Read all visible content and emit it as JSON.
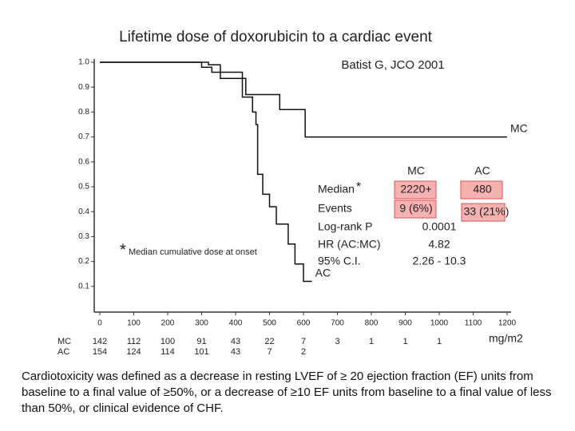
{
  "chart_data": {
    "type": "line",
    "title": "Lifetime dose of doxorubicin to a cardiac event",
    "subtitle": "Batist G, JCO 2001",
    "x_label": "mg/m2",
    "xlim": [
      0,
      1200
    ],
    "xticks": [
      0,
      100,
      200,
      300,
      400,
      500,
      600,
      700,
      800,
      900,
      1000,
      1100,
      1200
    ],
    "ylim": [
      0,
      1
    ],
    "yticks": [
      0.1,
      0.2,
      0.3,
      0.4,
      0.5,
      0.6,
      0.7,
      0.8,
      0.9,
      {
        "value": 1,
        "label": "1.0"
      }
    ],
    "grid": false,
    "series": [
      {
        "name": "MC",
        "color": "#111111",
        "x": [
          0,
          320,
          320,
          355,
          355,
          430,
          430,
          530,
          530,
          605,
          605,
          1200
        ],
        "values": [
          1,
          1,
          0.99,
          0.99,
          0.935,
          0.935,
          0.87,
          0.87,
          0.81,
          0.81,
          0.7,
          0.7
        ]
      },
      {
        "name": "AC",
        "color": "#111111",
        "x": [
          0,
          300,
          300,
          330,
          330,
          420,
          420,
          450,
          450,
          460,
          460,
          465,
          465,
          480,
          480,
          500,
          500,
          520,
          520,
          555,
          555,
          575,
          575,
          600,
          600,
          625
        ],
        "values": [
          1,
          1,
          0.98,
          0.98,
          0.96,
          0.96,
          0.86,
          0.86,
          0.8,
          0.8,
          0.75,
          0.75,
          0.55,
          0.55,
          0.47,
          0.47,
          0.42,
          0.42,
          0.35,
          0.35,
          0.27,
          0.27,
          0.19,
          0.19,
          0.12,
          0.12
        ]
      }
    ],
    "at_risk": [
      {
        "name": "MC",
        "counts": [
          142,
          112,
          100,
          91,
          43,
          22,
          7,
          3,
          1,
          1,
          1
        ]
      },
      {
        "name": "AC",
        "counts": [
          154,
          124,
          114,
          101,
          43,
          7,
          2
        ]
      }
    ],
    "stats": {
      "columns": [
        "MC",
        "AC"
      ],
      "rows": [
        {
          "label": "Median",
          "values": [
            "2220+",
            "480"
          ]
        },
        {
          "label": "Events",
          "values": [
            "9 (6%)",
            "33 (21%)"
          ]
        },
        {
          "label": "Log-rank P",
          "values": [
            "0.0001"
          ]
        },
        {
          "label": "HR (AC:MC)",
          "values": [
            "4.82"
          ]
        },
        {
          "label": "95% C.I.",
          "values": [
            "2.26 - 10.3"
          ]
        }
      ]
    },
    "annotation": {
      "marker": "*",
      "text": "Median cumulative dose at onset"
    }
  },
  "caption": "Cardiotoxicity was defined as a decrease in resting LVEF of ≥ 20 ejection fraction (EF) units from baseline to a final value of ≥50%, or a decrease of  ≥10 EF units from baseline to a final value of less than 50%, or clinical evidence of CHF."
}
